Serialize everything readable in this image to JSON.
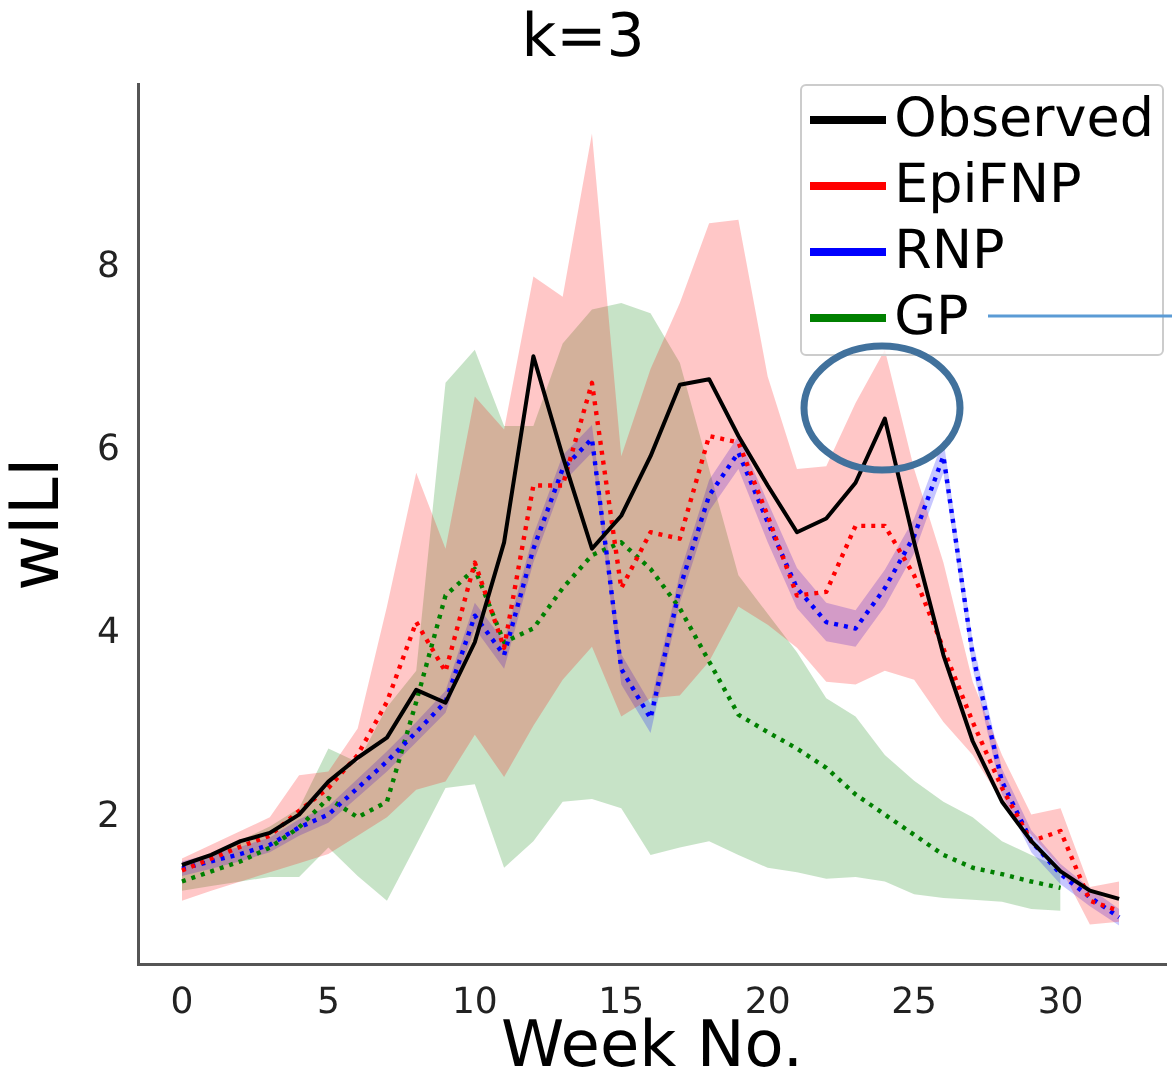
{
  "chart_data": {
    "type": "line",
    "title": "k=3",
    "xlabel": "Week No.",
    "ylabel": "wILI",
    "x": [
      0,
      1,
      2,
      3,
      4,
      5,
      6,
      7,
      8,
      9,
      10,
      11,
      12,
      13,
      14,
      15,
      16,
      17,
      18,
      19,
      20,
      21,
      22,
      23,
      24,
      25,
      26,
      27,
      28,
      29,
      30,
      31,
      32
    ],
    "xlim": [
      -1.5,
      33.6
    ],
    "xticks": [
      0,
      5,
      10,
      15,
      20,
      25,
      30
    ],
    "ylim": [
      0.4,
      10
    ],
    "yticks": [
      2,
      4,
      6,
      8
    ],
    "grid": false,
    "legend": "top right",
    "series": [
      {
        "name": "Observed",
        "color": "#000000",
        "line_style": "solid",
        "values": [
          1.48,
          1.59,
          1.74,
          1.83,
          2.03,
          2.39,
          2.65,
          2.87,
          3.39,
          3.25,
          3.91,
          5.0,
          7.03,
          5.94,
          4.93,
          5.29,
          5.94,
          6.72,
          6.78,
          6.16,
          5.62,
          5.11,
          5.26,
          5.65,
          6.35,
          5.0,
          3.77,
          2.83,
          2.17,
          1.74,
          1.41,
          1.2,
          1.11
        ]
      },
      {
        "name": "EpiFNP",
        "color": "#ff0000",
        "line_style": "dotted",
        "values": [
          1.42,
          1.55,
          1.68,
          1.8,
          2.07,
          2.32,
          2.68,
          3.26,
          4.13,
          3.59,
          4.78,
          3.85,
          5.62,
          5.62,
          6.74,
          4.5,
          5.11,
          5.04,
          6.16,
          6.09,
          5.29,
          4.42,
          4.46,
          5.18,
          5.18,
          4.64,
          3.84,
          3.04,
          2.32,
          1.74,
          1.85,
          1.09,
          0.98
        ],
        "lower": [
          1.09,
          1.2,
          1.3,
          1.4,
          1.5,
          1.6,
          1.8,
          2.0,
          2.3,
          2.39,
          2.9,
          2.44,
          3.0,
          3.5,
          3.86,
          3.1,
          3.3,
          3.33,
          3.7,
          4.3,
          4.1,
          3.85,
          3.48,
          3.45,
          3.6,
          3.5,
          3.04,
          2.68,
          2.17,
          1.81,
          1.45,
          0.83,
          0.86
        ],
        "upper": [
          1.55,
          1.7,
          1.85,
          2.0,
          2.46,
          2.5,
          2.97,
          4.3,
          5.76,
          4.93,
          6.59,
          6.23,
          7.9,
          7.68,
          9.46,
          5.94,
          6.89,
          7.61,
          8.48,
          8.52,
          6.81,
          5.8,
          5.83,
          6.52,
          7.1,
          5.8,
          4.78,
          3.48,
          2.68,
          2.03,
          2.1,
          1.24,
          1.3
        ]
      },
      {
        "name": "RNP",
        "color": "#0000ff",
        "line_style": "dotted",
        "values": [
          1.44,
          1.52,
          1.6,
          1.7,
          1.89,
          2.03,
          2.32,
          2.61,
          2.93,
          3.26,
          4.2,
          3.77,
          4.93,
          5.8,
          6.13,
          3.62,
          3.08,
          4.5,
          5.51,
          5.98,
          5.22,
          4.5,
          4.13,
          4.06,
          4.5,
          5.07,
          5.94,
          3.77,
          2.39,
          1.74,
          1.38,
          1.13,
          0.91
        ],
        "lower": [
          1.36,
          1.44,
          1.52,
          1.62,
          1.8,
          1.94,
          2.22,
          2.5,
          2.82,
          3.14,
          4.06,
          3.62,
          4.78,
          5.65,
          5.98,
          3.45,
          2.92,
          4.34,
          5.34,
          5.8,
          5.0,
          4.28,
          3.92,
          3.86,
          4.3,
          4.88,
          5.76,
          3.62,
          2.25,
          1.62,
          1.27,
          1.03,
          0.82
        ],
        "upper": [
          1.52,
          1.6,
          1.68,
          1.78,
          1.98,
          2.12,
          2.42,
          2.72,
          3.04,
          3.38,
          4.34,
          3.92,
          5.08,
          5.95,
          6.28,
          3.78,
          3.24,
          4.66,
          5.68,
          6.16,
          5.44,
          4.72,
          4.34,
          4.26,
          4.7,
          5.26,
          6.12,
          3.92,
          2.53,
          1.86,
          1.49,
          1.23,
          1.0
        ]
      },
      {
        "name": "GP",
        "color": "#008000",
        "line_style": "dotted",
        "values": [
          1.3,
          1.41,
          1.52,
          1.67,
          1.89,
          2.21,
          2.0,
          2.17,
          3.26,
          4.42,
          4.71,
          3.91,
          4.06,
          4.5,
          4.86,
          5.0,
          4.71,
          4.28,
          3.7,
          3.12,
          2.93,
          2.75,
          2.54,
          2.25,
          2.03,
          1.81,
          1.59,
          1.45,
          1.38,
          1.3,
          1.23,
          null,
          null
        ],
        "lower": [
          1.2,
          1.25,
          1.3,
          1.35,
          1.35,
          1.67,
          1.36,
          1.09,
          1.7,
          2.32,
          2.36,
          1.45,
          1.74,
          2.17,
          2.2,
          2.1,
          1.59,
          1.67,
          1.74,
          1.59,
          1.45,
          1.4,
          1.33,
          1.35,
          1.3,
          1.16,
          1.12,
          1.1,
          1.08,
          1.0,
          0.98,
          null,
          null
        ],
        "upper": [
          1.5,
          1.6,
          1.75,
          1.9,
          2.1,
          2.75,
          2.6,
          3.2,
          3.6,
          6.74,
          7.1,
          6.27,
          6.27,
          7.17,
          7.54,
          7.61,
          7.5,
          6.96,
          5.8,
          4.64,
          4.22,
          3.8,
          3.3,
          3.1,
          2.68,
          2.4,
          2.17,
          2.0,
          1.74,
          1.59,
          1.45,
          null,
          null
        ]
      }
    ]
  }
}
